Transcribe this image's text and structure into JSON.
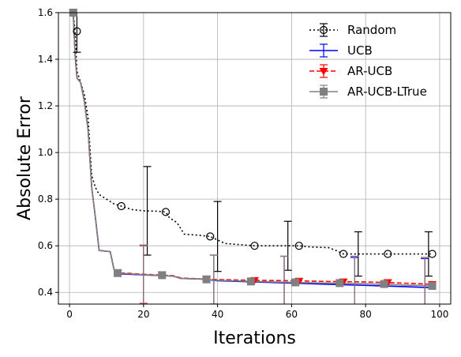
{
  "chart_data": {
    "type": "line",
    "xlabel": "Iterations",
    "ylabel": "Absolute Error",
    "xlim": [
      -3,
      103
    ],
    "ylim": [
      0.35,
      1.6
    ],
    "xticks": [
      0,
      20,
      40,
      60,
      80,
      100
    ],
    "yticks": [
      0.4,
      0.6,
      0.8,
      1.0,
      1.2,
      1.4,
      1.6
    ],
    "xtick_labels": [
      "0",
      "20",
      "40",
      "60",
      "80",
      "100"
    ],
    "ytick_labels": [
      "0.4",
      "0.6",
      "0.8",
      "1.0",
      "1.2",
      "1.4",
      "1.6"
    ],
    "grid": true,
    "legend_position": "top-right",
    "series": [
      {
        "name": "Random",
        "color": "#000000",
        "style": "dotted",
        "marker": "circle-open",
        "line": [
          [
            1,
            1.6
          ],
          [
            1.5,
            1.52
          ],
          [
            2,
            1.35
          ],
          [
            3,
            1.3
          ],
          [
            4,
            1.25
          ],
          [
            5,
            1.15
          ],
          [
            6,
            0.9
          ],
          [
            7,
            0.85
          ],
          [
            8,
            0.82
          ],
          [
            10,
            0.8
          ],
          [
            12,
            0.78
          ],
          [
            14,
            0.77
          ],
          [
            17,
            0.755
          ],
          [
            20,
            0.75
          ],
          [
            24,
            0.748
          ],
          [
            26,
            0.745
          ],
          [
            27,
            0.72
          ],
          [
            29,
            0.7
          ],
          [
            31,
            0.65
          ],
          [
            35,
            0.645
          ],
          [
            38,
            0.64
          ],
          [
            40,
            0.625
          ],
          [
            42,
            0.61
          ],
          [
            46,
            0.605
          ],
          [
            50,
            0.6
          ],
          [
            55,
            0.6
          ],
          [
            62,
            0.6
          ],
          [
            65,
            0.595
          ],
          [
            70,
            0.592
          ],
          [
            72,
            0.58
          ],
          [
            74,
            0.565
          ],
          [
            78,
            0.565
          ],
          [
            86,
            0.565
          ],
          [
            98,
            0.565
          ]
        ],
        "markers": [
          [
            2,
            1.52
          ],
          [
            14,
            0.77
          ],
          [
            26,
            0.745
          ],
          [
            38,
            0.64
          ],
          [
            50,
            0.6
          ],
          [
            62,
            0.6
          ],
          [
            74,
            0.565
          ],
          [
            86,
            0.565
          ],
          [
            98,
            0.565
          ]
        ],
        "errorbars": [
          [
            2,
            1.52,
            0.09
          ],
          [
            21,
            0.75,
            0.19
          ],
          [
            40,
            0.64,
            0.15
          ],
          [
            59,
            0.6,
            0.105
          ],
          [
            78,
            0.565,
            0.095
          ],
          [
            97,
            0.565,
            0.095
          ]
        ]
      },
      {
        "name": "UCB",
        "color": "#0000ff",
        "style": "solid",
        "marker": "none",
        "line": [
          [
            1,
            1.6
          ],
          [
            1.5,
            1.42
          ],
          [
            2,
            1.32
          ],
          [
            3,
            1.3
          ],
          [
            4,
            1.22
          ],
          [
            5,
            1.1
          ],
          [
            6,
            0.85
          ],
          [
            7,
            0.72
          ],
          [
            8,
            0.58
          ],
          [
            11,
            0.575
          ],
          [
            12,
            0.5
          ],
          [
            13,
            0.48
          ],
          [
            20,
            0.475
          ],
          [
            28,
            0.47
          ],
          [
            30,
            0.46
          ],
          [
            36,
            0.457
          ],
          [
            40,
            0.45
          ],
          [
            50,
            0.445
          ],
          [
            60,
            0.44
          ],
          [
            70,
            0.435
          ],
          [
            80,
            0.43
          ],
          [
            90,
            0.425
          ],
          [
            98,
            0.42
          ]
        ],
        "markers": [],
        "errorbars": [
          [
            20,
            0.475,
            0.125
          ],
          [
            39,
            0.455,
            0.105
          ],
          [
            58,
            0.445,
            0.11
          ],
          [
            77,
            0.435,
            0.115
          ],
          [
            96,
            0.43,
            0.115
          ]
        ]
      },
      {
        "name": "AR-UCB",
        "color": "#ff0000",
        "style": "dashed",
        "marker": "triangle-down",
        "line": [
          [
            1,
            1.6
          ],
          [
            1.5,
            1.42
          ],
          [
            2,
            1.32
          ],
          [
            3,
            1.3
          ],
          [
            4,
            1.22
          ],
          [
            5,
            1.1
          ],
          [
            6,
            0.85
          ],
          [
            7,
            0.72
          ],
          [
            8,
            0.58
          ],
          [
            11,
            0.575
          ],
          [
            12,
            0.5
          ],
          [
            13,
            0.485
          ],
          [
            20,
            0.478
          ],
          [
            28,
            0.472
          ],
          [
            30,
            0.462
          ],
          [
            36,
            0.458
          ],
          [
            40,
            0.455
          ],
          [
            50,
            0.452
          ],
          [
            60,
            0.45
          ],
          [
            70,
            0.447
          ],
          [
            80,
            0.445
          ],
          [
            90,
            0.44
          ],
          [
            98,
            0.435
          ]
        ],
        "markers": [
          [
            1,
            1.6
          ],
          [
            13,
            0.485
          ],
          [
            25,
            0.476
          ],
          [
            37,
            0.458
          ],
          [
            50,
            0.452
          ],
          [
            62,
            0.449
          ],
          [
            74,
            0.446
          ],
          [
            86,
            0.443
          ],
          [
            98,
            0.435
          ]
        ],
        "errorbars": [
          [
            20,
            0.478,
            0.125
          ],
          [
            39,
            0.455,
            0.105
          ],
          [
            58,
            0.45,
            0.105
          ],
          [
            77,
            0.445,
            0.11
          ],
          [
            96,
            0.44,
            0.11
          ]
        ]
      },
      {
        "name": "AR-UCB-LTrue",
        "color": "#808080",
        "style": "solid",
        "marker": "square",
        "line": [
          [
            1,
            1.6
          ],
          [
            1.5,
            1.42
          ],
          [
            2,
            1.32
          ],
          [
            3,
            1.3
          ],
          [
            4,
            1.22
          ],
          [
            5,
            1.1
          ],
          [
            6,
            0.85
          ],
          [
            7,
            0.72
          ],
          [
            8,
            0.58
          ],
          [
            11,
            0.575
          ],
          [
            12,
            0.5
          ],
          [
            13,
            0.483
          ],
          [
            20,
            0.476
          ],
          [
            28,
            0.47
          ],
          [
            30,
            0.46
          ],
          [
            36,
            0.457
          ],
          [
            40,
            0.452
          ],
          [
            50,
            0.447
          ],
          [
            60,
            0.443
          ],
          [
            70,
            0.44
          ],
          [
            80,
            0.437
          ],
          [
            90,
            0.432
          ],
          [
            98,
            0.428
          ]
        ],
        "markers": [
          [
            1,
            1.6
          ],
          [
            13,
            0.483
          ],
          [
            25,
            0.474
          ],
          [
            37,
            0.456
          ],
          [
            49,
            0.447
          ],
          [
            61,
            0.443
          ],
          [
            73,
            0.44
          ],
          [
            85,
            0.436
          ],
          [
            98,
            0.428
          ]
        ],
        "errorbars": [
          [
            20,
            0.476,
            0.125
          ],
          [
            39,
            0.455,
            0.105
          ],
          [
            58,
            0.445,
            0.11
          ],
          [
            77,
            0.44,
            0.115
          ],
          [
            96,
            0.435,
            0.115
          ]
        ]
      }
    ]
  }
}
